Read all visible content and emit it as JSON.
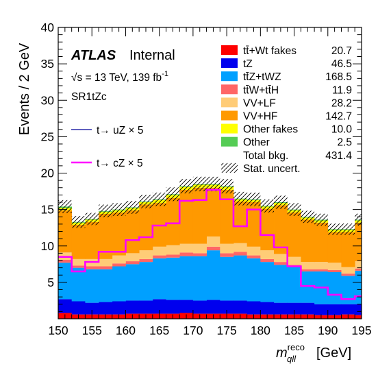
{
  "chart_data": {
    "type": "area",
    "stacked": true,
    "experiment": "ATLAS",
    "status": "Internal",
    "energy_label": "√s = 13 TeV, 139 fb",
    "energy_sup": "-1",
    "region": "SR1tZc",
    "ylabel": "Events / 2 GeV",
    "xlabel_main": "m",
    "xlabel_sup": "reco",
    "xlabel_sub": "qll",
    "xlabel_unit": "[GeV]",
    "xlim": [
      150,
      195
    ],
    "ylim": [
      0,
      40
    ],
    "x_ticks": [
      150,
      155,
      160,
      165,
      170,
      175,
      180,
      185,
      190,
      195
    ],
    "y_ticks": [
      5,
      10,
      15,
      20,
      25,
      30,
      35,
      40
    ],
    "bin_edges": [
      150,
      152,
      154,
      156,
      158,
      160,
      162,
      164,
      166,
      168,
      170,
      172,
      174,
      176,
      178,
      180,
      182,
      184,
      186,
      188,
      190,
      192,
      194,
      195
    ],
    "series": [
      {
        "name": "tt̄+Wt fakes",
        "color": "#ff0000",
        "yield": "20.7",
        "values": [
          0.8,
          0.6,
          0.6,
          0.6,
          0.6,
          0.7,
          0.7,
          0.7,
          0.7,
          0.8,
          0.7,
          0.7,
          0.7,
          0.7,
          0.6,
          0.6,
          0.6,
          0.6,
          0.6,
          0.5,
          0.5,
          0.6,
          0.5
        ]
      },
      {
        "name": "tZ",
        "color": "#0000ee",
        "yield": "46.5",
        "values": [
          1.9,
          1.8,
          1.6,
          1.7,
          1.8,
          1.8,
          1.8,
          2.0,
          1.9,
          1.8,
          1.8,
          1.9,
          1.8,
          1.8,
          1.8,
          1.7,
          1.6,
          1.6,
          1.6,
          1.5,
          1.5,
          1.4,
          1.5
        ]
      },
      {
        "name": "tt̄Z+tWZ",
        "color": "#00a0ff",
        "yield": "168.5",
        "values": [
          5.0,
          4.6,
          4.6,
          4.5,
          4.8,
          5.0,
          5.3,
          5.6,
          5.8,
          6.0,
          6.1,
          6.8,
          6.0,
          6.2,
          5.9,
          5.5,
          5.2,
          4.9,
          4.3,
          4.5,
          4.4,
          3.9,
          4.6
        ]
      },
      {
        "name": "tt̄W+tt̄H",
        "color": "#ff6666",
        "yield": "11.9",
        "values": [
          0.4,
          0.3,
          0.4,
          0.4,
          0.4,
          0.4,
          0.4,
          0.4,
          0.4,
          0.5,
          0.4,
          0.5,
          0.5,
          0.5,
          0.4,
          0.4,
          0.4,
          0.3,
          0.3,
          0.3,
          0.3,
          0.3,
          0.3
        ]
      },
      {
        "name": "VV+LF",
        "color": "#ffcc77",
        "yield": "28.2",
        "values": [
          1.0,
          0.9,
          1.0,
          1.0,
          1.1,
          1.1,
          1.2,
          1.2,
          1.3,
          1.2,
          1.3,
          1.4,
          1.3,
          1.2,
          1.2,
          1.2,
          1.1,
          1.1,
          1.0,
          1.0,
          1.0,
          0.9,
          1.0
        ]
      },
      {
        "name": "VV+HF",
        "color": "#ff9900",
        "yield": "142.7",
        "values": [
          5.8,
          4.7,
          5.1,
          6.2,
          5.9,
          5.9,
          6.3,
          6.0,
          6.5,
          7.4,
          7.7,
          6.7,
          7.4,
          5.7,
          6.1,
          5.7,
          6.7,
          6.1,
          5.8,
          5.4,
          4.2,
          4.8,
          5.3
        ]
      },
      {
        "name": "Other fakes",
        "color": "#ffff00",
        "yield": "10.0",
        "values": [
          0.3,
          0.3,
          0.3,
          0.3,
          0.3,
          0.3,
          0.3,
          0.4,
          0.4,
          0.4,
          0.4,
          0.4,
          0.4,
          0.3,
          0.3,
          0.3,
          0.3,
          0.3,
          0.3,
          0.3,
          0.3,
          0.3,
          0.3
        ]
      },
      {
        "name": "Other",
        "color": "#55cc55",
        "yield": "2.5",
        "values": [
          0.2,
          0.1,
          0.1,
          0.1,
          0.1,
          0.1,
          0.1,
          0.1,
          0.1,
          0.1,
          0.1,
          0.1,
          0.1,
          0.1,
          0.1,
          0.1,
          0.1,
          0.1,
          0.1,
          0.1,
          0.1,
          0.1,
          0.1
        ]
      }
    ],
    "total_label": "Total bkg.",
    "total_yield": "431.4",
    "uncert_label": "Stat. uncert.",
    "signals": [
      {
        "name": "t→ uZ × 5",
        "color": "#000099",
        "values": []
      },
      {
        "name": "t→ cZ × 5",
        "color": "#ff00ff",
        "values": [
          8.5,
          6.5,
          7.8,
          9.2,
          9.2,
          10.8,
          11.2,
          12.8,
          13.1,
          16.2,
          16.3,
          17.7,
          16.4,
          12.7,
          15.0,
          11.5,
          9.8,
          7.2,
          4.5,
          4.3,
          3.3,
          2.7,
          3.1
        ]
      }
    ]
  }
}
